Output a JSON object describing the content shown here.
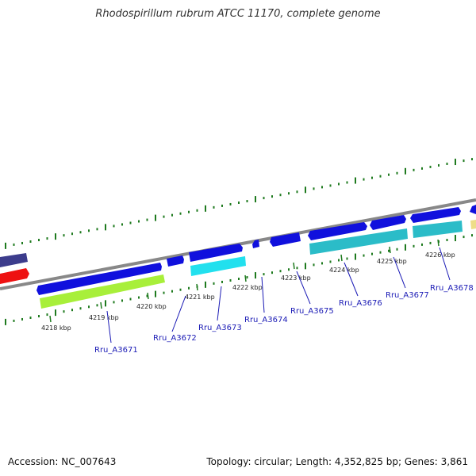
{
  "title": "Rhodospirillum rubrum ATCC 11170, complete genome",
  "footer": {
    "accession": "Accession: NC_007643",
    "stats": "Topology: circular; Length: 4,352,825 bp; Genes: 3,861"
  },
  "colors": {
    "backbone": "#888888",
    "dots": "#1e7a1e",
    "forward_gene": "#1010dd",
    "cyan": "#22e0ee",
    "teal": "#2bbcc8",
    "lime": "#a8ef3a",
    "red": "#ee1111",
    "purple": "#3c3c8c",
    "tan": "#eedd88",
    "label": "#1a1ab5"
  },
  "ticks": [
    "4218 kbp",
    "4219 kbp",
    "4220 kbp",
    "4221 kbp",
    "4222 kbp",
    "4223 kbp",
    "4224 kbp",
    "4225 kbp",
    "4226 kbp"
  ],
  "gene_labels": [
    "Rru_A3671",
    "Rru_A3672",
    "Rru_A3673",
    "Rru_A3674",
    "Rru_A3675",
    "Rru_A3676",
    "Rru_A3677",
    "Rru_A3678"
  ]
}
